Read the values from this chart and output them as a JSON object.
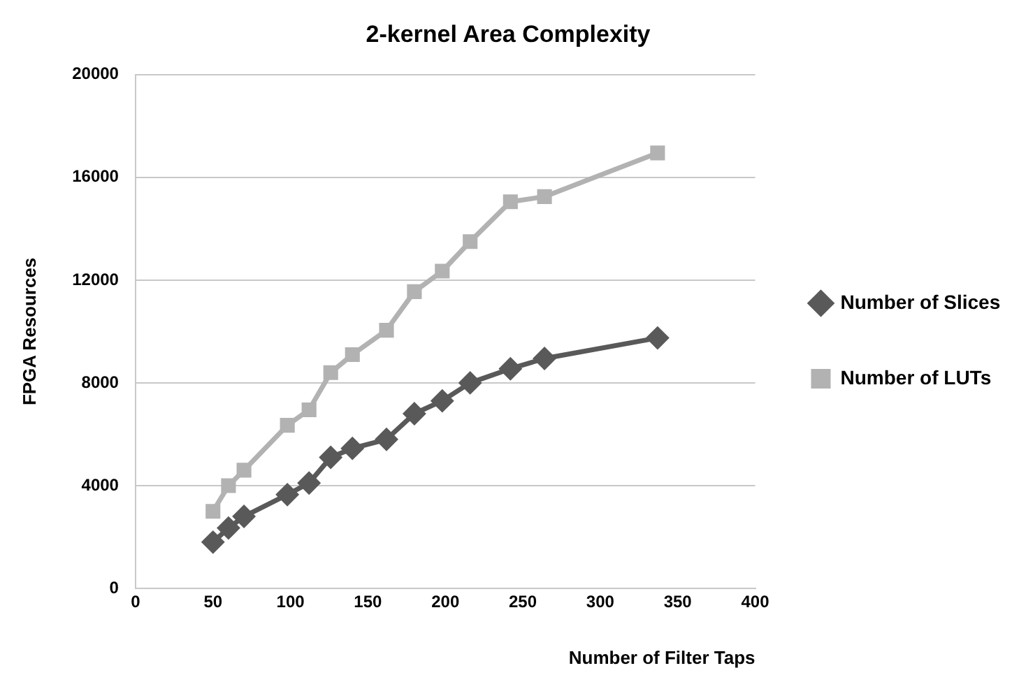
{
  "chart_data": {
    "type": "line",
    "title": "2-kernel Area Complexity",
    "xlabel": "Number of Filter Taps",
    "ylabel": "FPGA Resources",
    "x": [
      50,
      60,
      70,
      98,
      112,
      126,
      140,
      162,
      180,
      198,
      216,
      242,
      264,
      337
    ],
    "series": [
      {
        "name": "Number of Slices",
        "color": "#595959",
        "marker": "diamond",
        "values": [
          1800,
          2350,
          2800,
          3650,
          4100,
          5100,
          5450,
          5800,
          6800,
          7300,
          8000,
          8550,
          8950,
          9750
        ]
      },
      {
        "name": "Number of LUTs",
        "color": "#b2b2b2",
        "marker": "square",
        "values": [
          3000,
          4000,
          4600,
          6350,
          6950,
          8400,
          9100,
          10050,
          11550,
          12350,
          13500,
          15050,
          15250,
          16950
        ]
      }
    ],
    "xlim": [
      0,
      400
    ],
    "xticks": [
      0,
      50,
      100,
      150,
      200,
      250,
      300,
      350,
      400
    ],
    "ylim": [
      0,
      20000
    ],
    "yticks": [
      0,
      4000,
      8000,
      12000,
      16000,
      20000
    ],
    "grid": "y",
    "legend": "right",
    "line_style": "solid"
  }
}
